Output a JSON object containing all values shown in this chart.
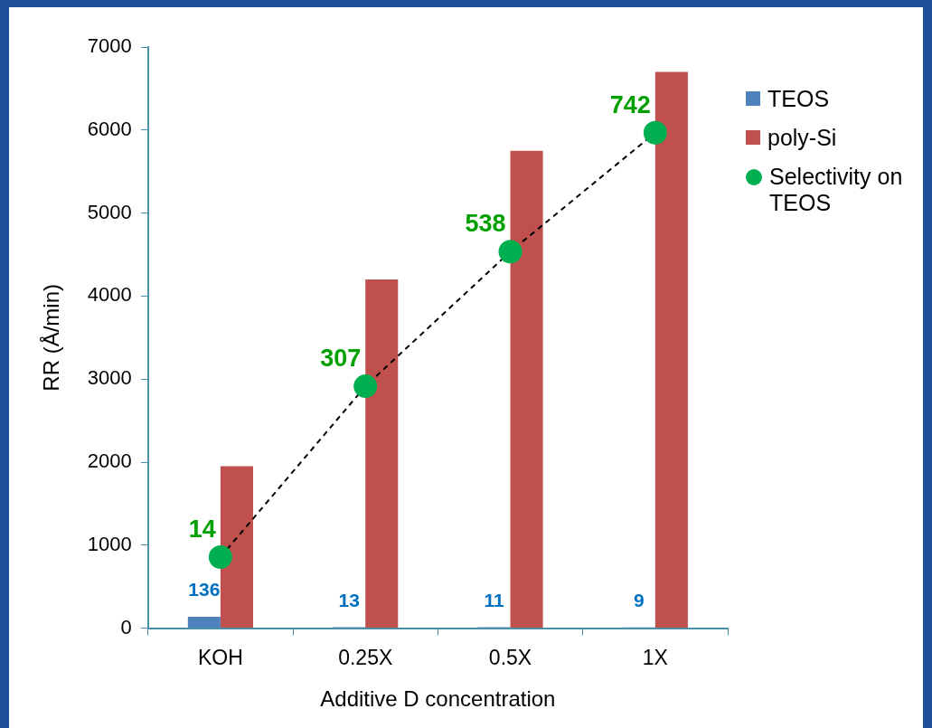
{
  "chart_data": {
    "type": "bar",
    "xlabel": "Additive D concentration",
    "ylabel": "RR (Å/min)",
    "categories": [
      "KOH",
      "0.25X",
      "0.5X",
      "1X"
    ],
    "series": [
      {
        "name": "TEOS",
        "color": "#4f81bd",
        "values": [
          136,
          13,
          11,
          9
        ],
        "value_labels": [
          "136",
          "13",
          "11",
          "9"
        ]
      },
      {
        "name": "poly-Si",
        "color": "#c0504d",
        "values": [
          1950,
          4200,
          5750,
          6700
        ]
      },
      {
        "name": "Selectivity on TEOS",
        "type": "line",
        "axis": "y2",
        "color": "#00b050",
        "values": [
          14,
          307,
          538,
          742
        ],
        "value_labels": [
          "14",
          "307",
          "538",
          "742"
        ],
        "marker": "circle",
        "line_style": "dashed"
      }
    ],
    "ylim": [
      0,
      7000
    ],
    "yticks": [
      0,
      1000,
      2000,
      3000,
      4000,
      5000,
      6000,
      7000
    ],
    "y2lim": [
      -108,
      889
    ],
    "legend": "right"
  }
}
